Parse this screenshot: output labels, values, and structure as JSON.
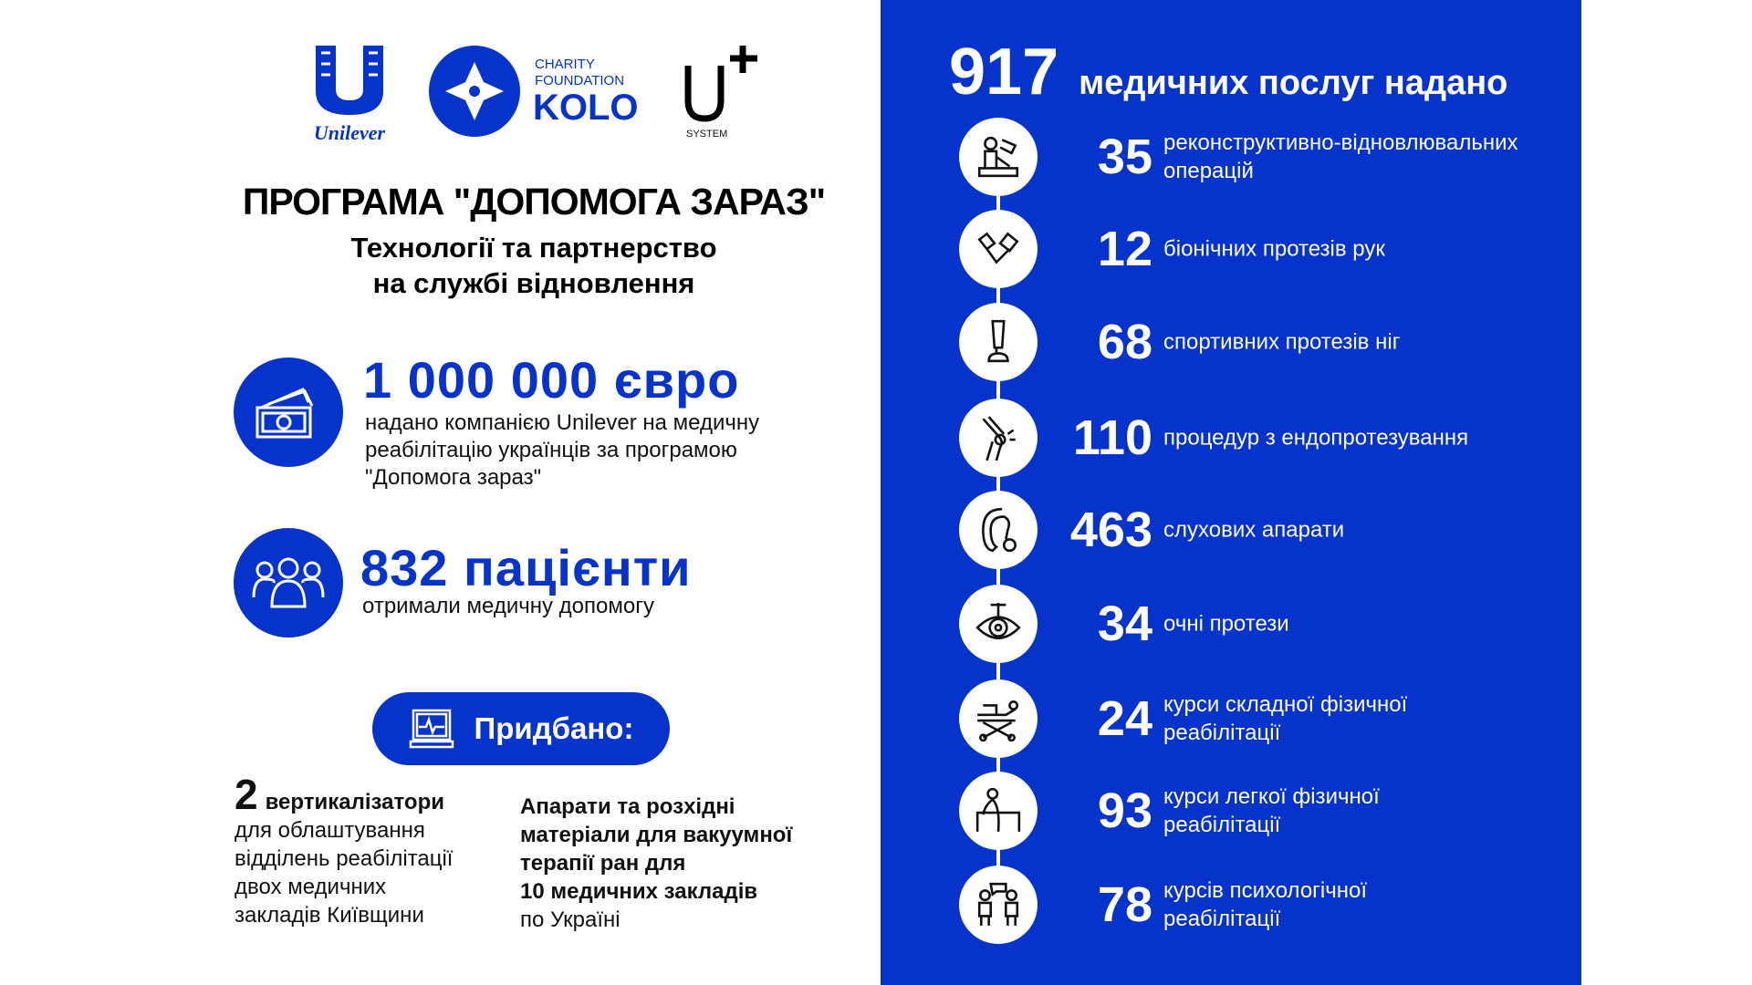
{
  "logos": {
    "unilever": "Unilever",
    "kolo_line1": "CHARITY",
    "kolo_line2": "FOUNDATION",
    "kolo_name": "KOLO",
    "usystem_mark": "U+",
    "usystem_sub": "SYSTEM"
  },
  "colors": {
    "brand_blue": "#0533cc",
    "text": "#111111",
    "background": "#ffffff"
  },
  "title": "ПРОГРАМА \"ДОПОМОГА ЗАРАЗ\"",
  "subtitle_line1": "Технології та партнерство",
  "subtitle_line2": "на службі відновлення",
  "funding": {
    "icon": "money-icon",
    "amount": "1 000 000 євро",
    "desc_line1": "надано компанією Unilever на медичну",
    "desc_line2": "реабілітацію українців за програмою",
    "desc_line3": "\"Допомога зараз\""
  },
  "patients": {
    "icon": "people-icon",
    "amount": "832 пацієнти",
    "desc": "отримали медичну допомогу"
  },
  "purchased_button": {
    "icon": "monitor-icon",
    "label": "Придбано:"
  },
  "purchased_left": {
    "count": "2",
    "item": "вертикалізатори",
    "lines": [
      "для облаштування",
      "відділень реабілітації",
      "двох медичних",
      "закладів Київщини"
    ]
  },
  "purchased_right": {
    "bold_lines": [
      "Апарати та розхідні",
      "матеріали для вакуумної",
      "терапії ран для",
      "10 медичних закладів"
    ],
    "line": "по Україні"
  },
  "services": {
    "total": "917",
    "heading": "медичних послуг надано",
    "items": [
      {
        "icon": "surgeon-icon",
        "value": "35",
        "line1": "реконструктивно-відновлювальних",
        "line2": "операцій"
      },
      {
        "icon": "bionic-arm-icon",
        "value": "12",
        "line1": "біонічних протезів рук",
        "line2": ""
      },
      {
        "icon": "prosthetic-leg-icon",
        "value": "68",
        "line1": "спортивних протезів ніг",
        "line2": ""
      },
      {
        "icon": "knee-joint-icon",
        "value": "110",
        "line1": "процедур з ендопротезування",
        "line2": ""
      },
      {
        "icon": "hearing-aid-icon",
        "value": "463",
        "line1": "слухових апарати",
        "line2": ""
      },
      {
        "icon": "eye-icon",
        "value": "34",
        "line1": "очні протези",
        "line2": ""
      },
      {
        "icon": "stretcher-icon",
        "value": "24",
        "line1": "курси складної фізичної",
        "line2": "реабілітації"
      },
      {
        "icon": "parallel-bars-icon",
        "value": "93",
        "line1": "курси легкої фізичної",
        "line2": "реабілітації"
      },
      {
        "icon": "therapy-session-icon",
        "value": "78",
        "line1": "курсів психологічної",
        "line2": "реабілітації"
      }
    ]
  }
}
